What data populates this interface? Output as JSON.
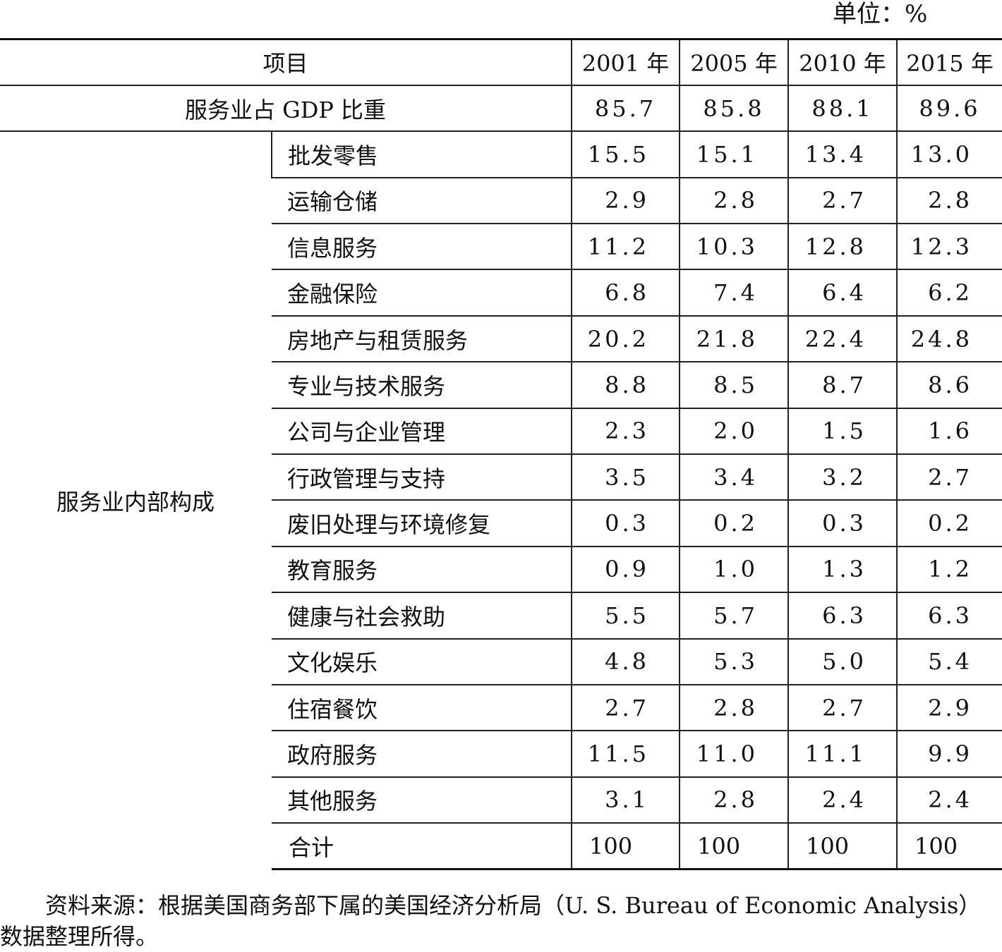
{
  "unit_label": "单位：%",
  "header": {
    "item": "项目",
    "years": [
      "2001 年",
      "2005 年",
      "2010 年",
      "2015 年"
    ]
  },
  "gdp_row": {
    "label": "服务业占 GDP 比重",
    "values": [
      "85.7",
      "85.8",
      "88.1",
      "89.6"
    ]
  },
  "group_label": "服务业内部构成",
  "rows": [
    {
      "name": "批发零售",
      "values": [
        "15.5",
        "15.1",
        "13.4",
        "13.0"
      ]
    },
    {
      "name": "运输仓储",
      "values": [
        "2.9",
        "2.8",
        "2.7",
        "2.8"
      ]
    },
    {
      "name": "信息服务",
      "values": [
        "11.2",
        "10.3",
        "12.8",
        "12.3"
      ]
    },
    {
      "name": "金融保险",
      "values": [
        "6.8",
        "7.4",
        "6.4",
        "6.2"
      ]
    },
    {
      "name": "房地产与租赁服务",
      "values": [
        "20.2",
        "21.8",
        "22.4",
        "24.8"
      ]
    },
    {
      "name": "专业与技术服务",
      "values": [
        "8.8",
        "8.5",
        "8.7",
        "8.6"
      ]
    },
    {
      "name": "公司与企业管理",
      "values": [
        "2.3",
        "2.0",
        "1.5",
        "1.6"
      ]
    },
    {
      "name": "行政管理与支持",
      "values": [
        "3.5",
        "3.4",
        "3.2",
        "2.7"
      ]
    },
    {
      "name": "废旧处理与环境修复",
      "values": [
        "0.3",
        "0.2",
        "0.3",
        "0.2"
      ]
    },
    {
      "name": "教育服务",
      "values": [
        "0.9",
        "1.0",
        "1.3",
        "1.2"
      ]
    },
    {
      "name": "健康与社会救助",
      "values": [
        "5.5",
        "5.7",
        "6.3",
        "6.3"
      ]
    },
    {
      "name": "文化娱乐",
      "values": [
        "4.8",
        "5.3",
        "5.0",
        "5.4"
      ]
    },
    {
      "name": "住宿餐饮",
      "values": [
        "2.7",
        "2.8",
        "2.7",
        "2.9"
      ]
    },
    {
      "name": "政府服务",
      "values": [
        "11.5",
        "11.0",
        "11.1",
        "9.9"
      ]
    },
    {
      "name": "其他服务",
      "values": [
        "3.1",
        "2.8",
        "2.4",
        "2.4"
      ]
    }
  ],
  "total_row": {
    "name": "合计",
    "values": [
      "100",
      "100",
      "100",
      "100"
    ]
  },
  "source_note": "资料来源：根据美国商务部下属的美国经济分析局（U. S. Bureau of Economic Analysis）数据整理所得。"
}
